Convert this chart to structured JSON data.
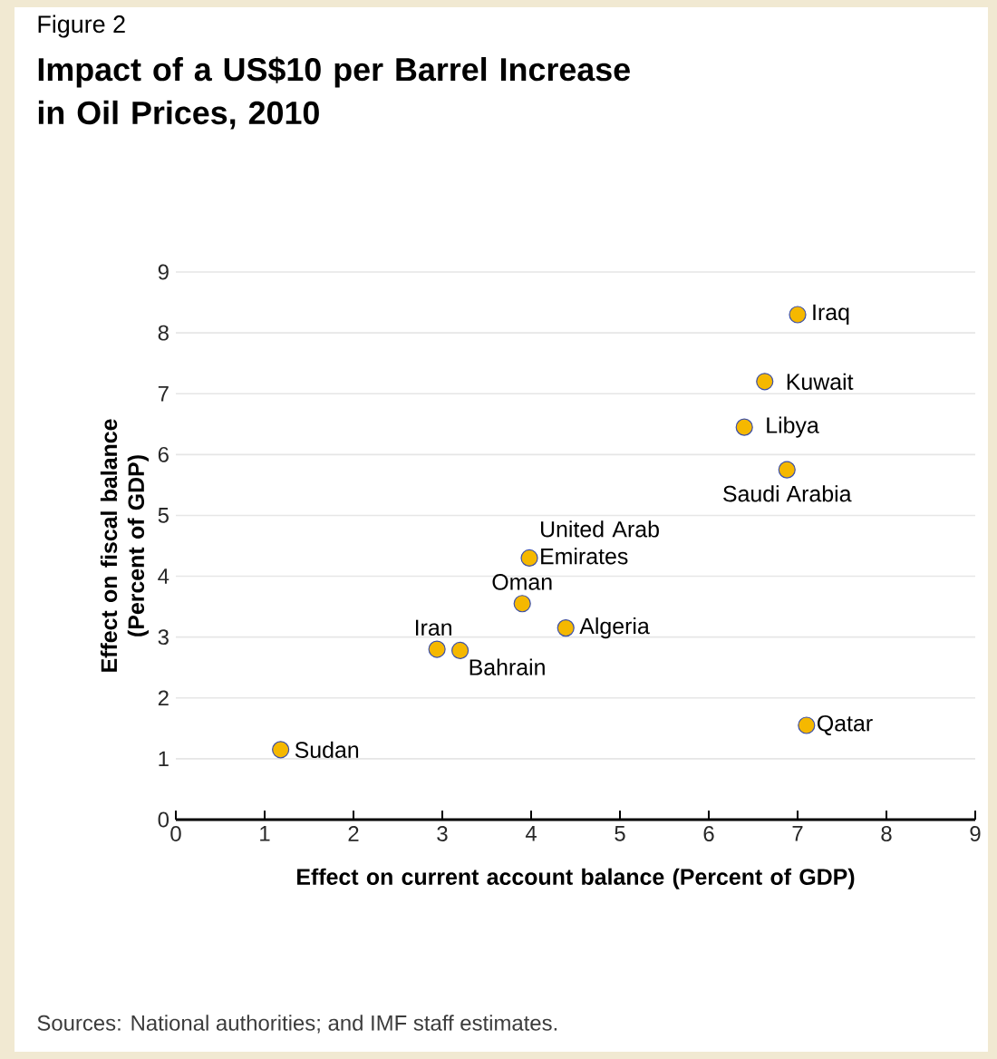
{
  "chart_data": {
    "type": "scatter",
    "title": "Impact of a US$10 per Barrel Increase in Oil Prices, 2010",
    "xlabel": "Effect on current account balance (Percent of GDP)",
    "ylabel": "Effect on fiscal balance (Percent of GDP)",
    "x": [
      7.0,
      6.63,
      6.4,
      6.88,
      3.98,
      3.9,
      4.39,
      2.94,
      3.2,
      1.18,
      7.1
    ],
    "values": [
      8.3,
      7.2,
      6.45,
      5.75,
      4.3,
      3.55,
      3.15,
      2.8,
      2.78,
      1.15,
      1.55
    ],
    "color": "#f5b800",
    "xlim": [
      0,
      9
    ],
    "xticks": [
      0,
      1,
      2,
      3,
      4,
      5,
      6,
      7,
      8,
      9
    ],
    "ylim": [
      0,
      9
    ],
    "yticks": [
      0,
      1,
      2,
      3,
      4,
      5,
      6,
      7,
      8,
      9
    ],
    "grid": "y",
    "annotations": [
      "Figure 2",
      {
        "text": "Iraq",
        "x": 7.0,
        "y": 8.3
      },
      {
        "text": "Kuwait",
        "x": 6.63,
        "y": 7.2
      },
      {
        "text": "Libya",
        "x": 6.4,
        "y": 6.45
      },
      {
        "text": "Saudi Arabia",
        "x": 6.88,
        "y": 5.75
      },
      {
        "text": "United Arab Emirates",
        "x": 3.98,
        "y": 4.3
      },
      {
        "text": "Oman",
        "x": 3.9,
        "y": 3.55
      },
      {
        "text": "Algeria",
        "x": 4.39,
        "y": 3.15
      },
      {
        "text": "Iran",
        "x": 2.94,
        "y": 2.8
      },
      {
        "text": "Bahrain",
        "x": 3.2,
        "y": 2.78
      },
      {
        "text": "Sudan",
        "x": 1.18,
        "y": 1.15
      },
      {
        "text": "Qatar",
        "x": 7.1,
        "y": 1.55
      },
      "Sources: National authorities; and IMF staff estimates."
    ]
  }
}
